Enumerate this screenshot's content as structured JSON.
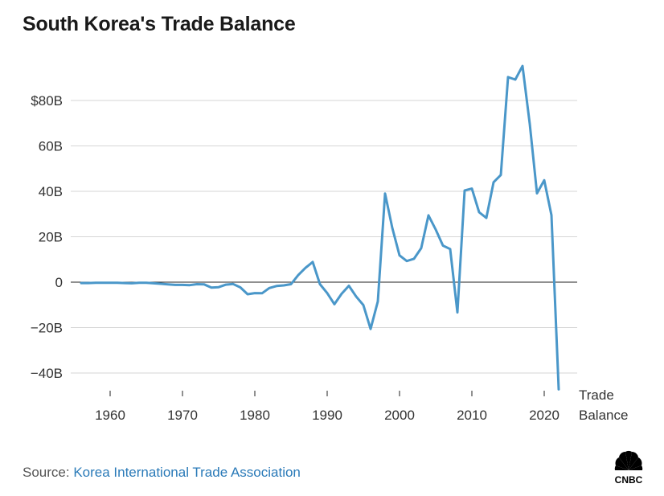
{
  "header": {
    "title": "South Korea's Trade Balance"
  },
  "footer": {
    "source_prefix": "Source: ",
    "source_name": "Korea International Trade Association"
  },
  "logo": {
    "text": "CNBC",
    "icon": "cnbc-peacock-logo"
  },
  "colors": {
    "line": "#4a97c9",
    "grid": "#d6d6d6",
    "zero": "#222222",
    "link": "#2a7ab8"
  },
  "chart_data": {
    "type": "line",
    "title": "South Korea's Trade Balance",
    "xlabel": "",
    "ylabel": "",
    "xlim": [
      1955,
      2024
    ],
    "ylim": [
      -45,
      95
    ],
    "grid": true,
    "x_ticks": [
      1960,
      1970,
      1980,
      1990,
      2000,
      2010,
      2020
    ],
    "x_tick_labels": [
      "1960",
      "1970",
      "1980",
      "1990",
      "2000",
      "2010",
      "2020"
    ],
    "y_ticks": [
      -40,
      -20,
      0,
      20,
      40,
      60,
      80
    ],
    "y_tick_labels": [
      "−40B",
      "−20B",
      "0",
      "20B",
      "40B",
      "60B",
      "$80B"
    ],
    "series": [
      {
        "name": "Trade Balance",
        "label_lines": [
          "Trade",
          "Balance"
        ],
        "x": [
          1956,
          1957,
          1958,
          1959,
          1960,
          1961,
          1962,
          1963,
          1964,
          1965,
          1966,
          1967,
          1968,
          1969,
          1970,
          1971,
          1972,
          1973,
          1974,
          1975,
          1976,
          1977,
          1978,
          1979,
          1980,
          1981,
          1982,
          1983,
          1984,
          1985,
          1986,
          1987,
          1988,
          1989,
          1990,
          1991,
          1992,
          1993,
          1994,
          1995,
          1996,
          1997,
          1998,
          1999,
          2000,
          2001,
          2002,
          2003,
          2004,
          2005,
          2006,
          2007,
          2008,
          2009,
          2010,
          2011,
          2012,
          2013,
          2014,
          2015,
          2016,
          2017,
          2018,
          2019,
          2020,
          2021,
          2022
        ],
        "values": [
          -0.4,
          -0.4,
          -0.3,
          -0.3,
          -0.3,
          -0.3,
          -0.4,
          -0.5,
          -0.3,
          -0.3,
          -0.5,
          -0.7,
          -1.0,
          -1.2,
          -1.2,
          -1.3,
          -0.9,
          -1.0,
          -2.4,
          -2.2,
          -1.1,
          -0.8,
          -2.3,
          -5.3,
          -4.8,
          -4.9,
          -2.6,
          -1.7,
          -1.4,
          -0.9,
          3.1,
          6.3,
          8.9,
          -0.9,
          -4.8,
          -9.7,
          -5.1,
          -1.6,
          -6.3,
          -10.1,
          -20.6,
          -8.5,
          39.0,
          23.9,
          11.8,
          9.3,
          10.3,
          15.0,
          29.4,
          23.2,
          16.1,
          14.6,
          -13.3,
          40.4,
          41.2,
          30.8,
          28.3,
          44.0,
          47.2,
          90.3,
          89.2,
          95.2,
          69.7,
          39.1,
          44.9,
          29.5,
          -47.2
        ]
      }
    ]
  }
}
